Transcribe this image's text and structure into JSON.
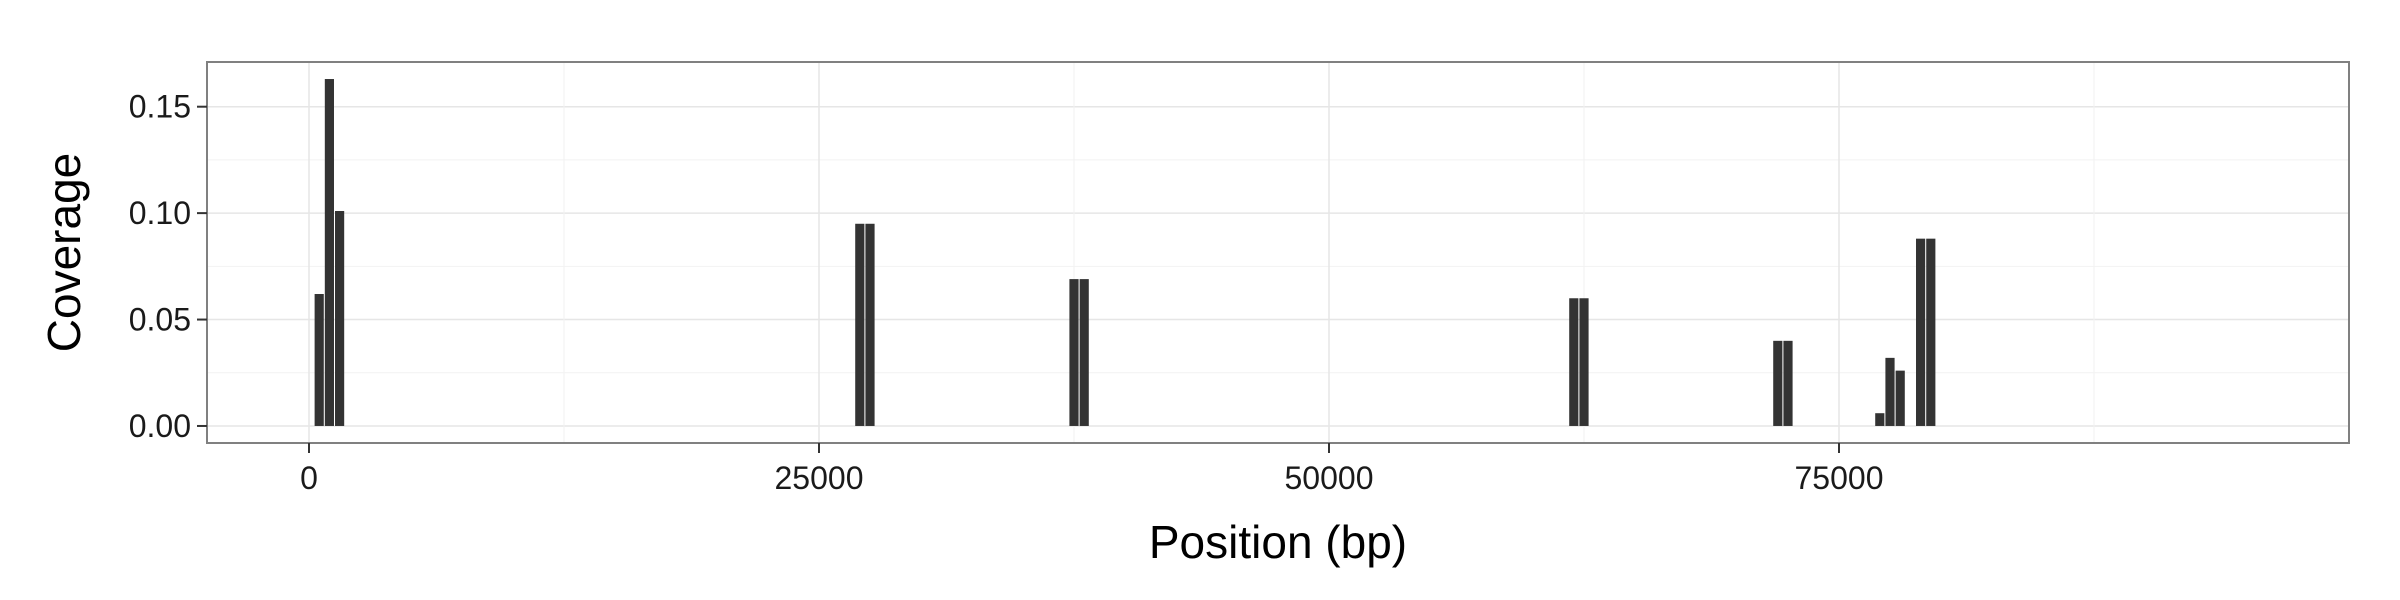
{
  "chart_data": {
    "type": "bar",
    "title": "",
    "xlabel": "Position (bp)",
    "ylabel": "Coverage",
    "xlim": [
      -5000,
      100000
    ],
    "ylim": [
      -0.008,
      0.171
    ],
    "x_ticks": [
      0,
      25000,
      50000,
      75000
    ],
    "x_tick_labels": [
      "0",
      "25000",
      "50000",
      "75000"
    ],
    "y_ticks": [
      0.0,
      0.05,
      0.1,
      0.15
    ],
    "y_tick_labels": [
      "0.00",
      "0.05",
      "0.10",
      "0.15"
    ],
    "grid": true,
    "legend": "none",
    "bar_width_bp": 450,
    "bars": [
      {
        "x": 500,
        "value": 0.062
      },
      {
        "x": 1000,
        "value": 0.163
      },
      {
        "x": 1500,
        "value": 0.101
      },
      {
        "x": 27000,
        "value": 0.095
      },
      {
        "x": 27500,
        "value": 0.095
      },
      {
        "x": 37500,
        "value": 0.069
      },
      {
        "x": 38000,
        "value": 0.069
      },
      {
        "x": 62000,
        "value": 0.06
      },
      {
        "x": 62500,
        "value": 0.06
      },
      {
        "x": 72000,
        "value": 0.04
      },
      {
        "x": 72500,
        "value": 0.04
      },
      {
        "x": 77000,
        "value": 0.006
      },
      {
        "x": 77500,
        "value": 0.032
      },
      {
        "x": 78000,
        "value": 0.026
      },
      {
        "x": 79000,
        "value": 0.088
      },
      {
        "x": 79500,
        "value": 0.088
      }
    ],
    "colors": {
      "bar": "#333333",
      "panel_border": "#808080",
      "grid_major": "#e6e6e6",
      "grid_minor": "#f2f2f2"
    }
  }
}
